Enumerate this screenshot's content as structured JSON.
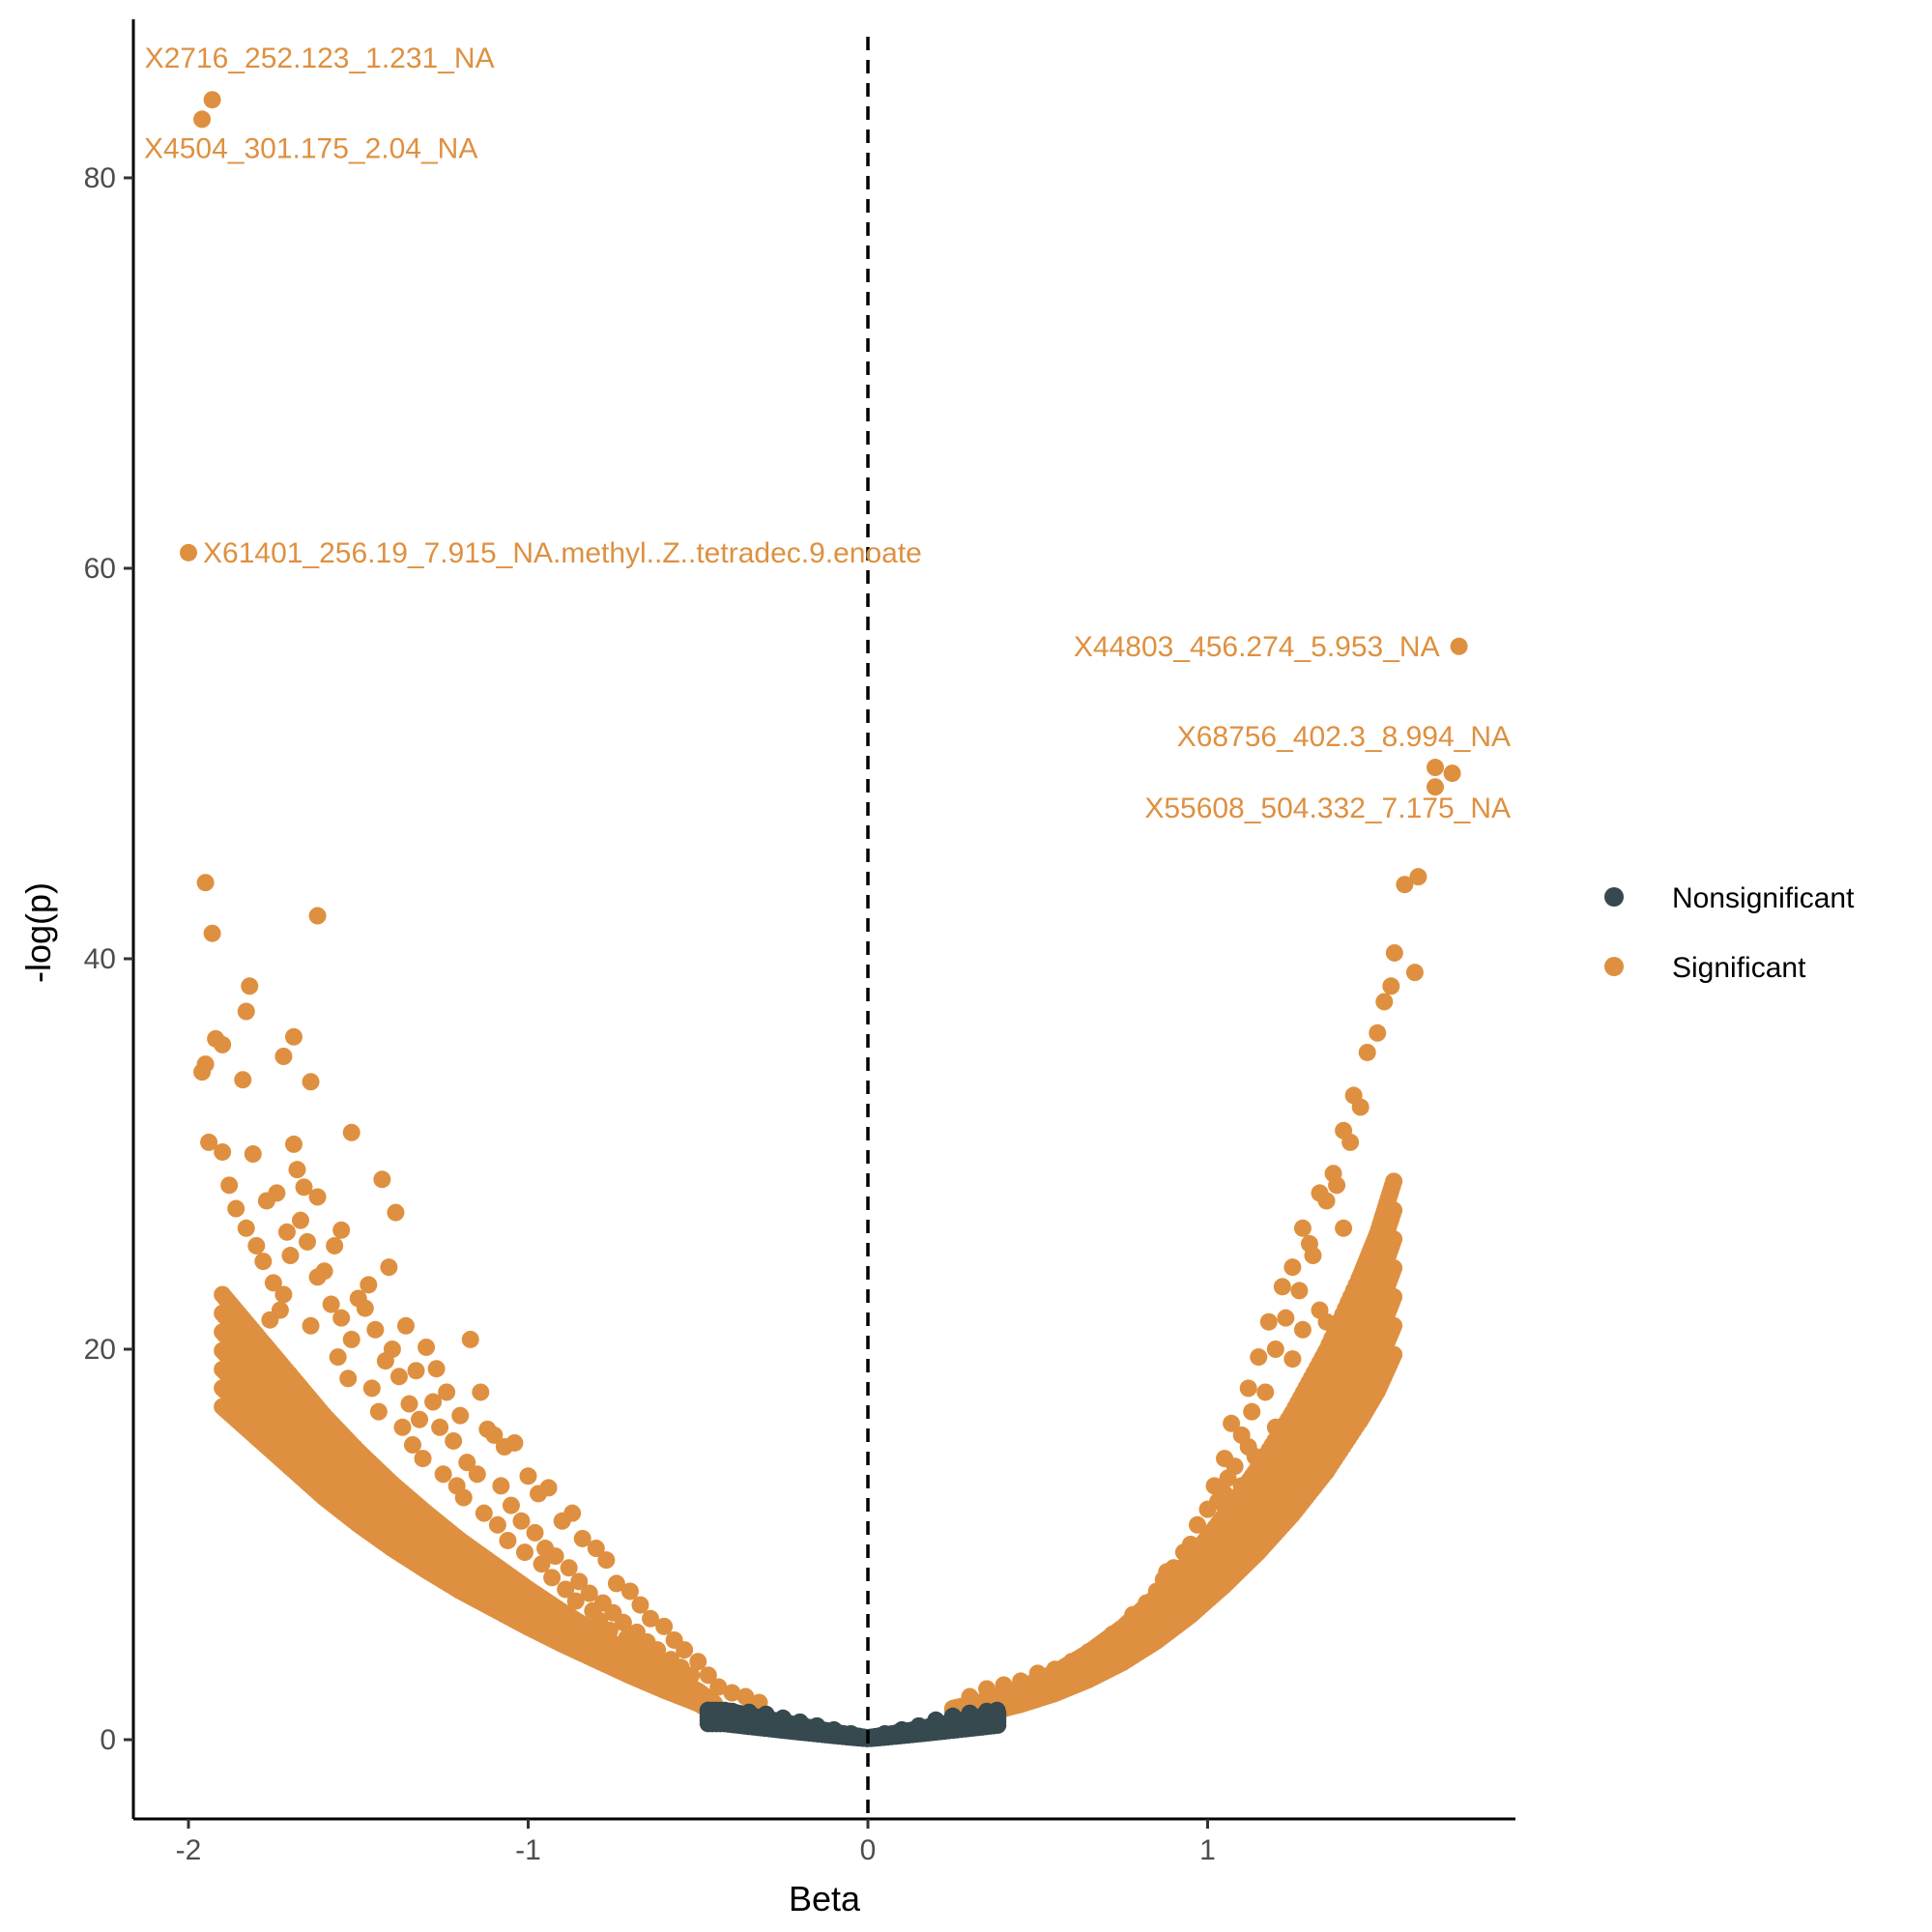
{
  "chart_data": {
    "type": "scatter",
    "title": "",
    "xlabel": "Beta",
    "ylabel": "-log(p)",
    "xlim": [
      -2.2,
      1.9
    ],
    "ylim": [
      -4,
      87
    ],
    "x_ticks": [
      -2,
      -1,
      0,
      1
    ],
    "x_tick_labels": [
      "-2",
      "-1",
      "0",
      "1"
    ],
    "y_ticks": [
      0,
      20,
      40,
      60,
      80
    ],
    "y_tick_labels": [
      "0",
      "20",
      "40",
      "60",
      "80"
    ],
    "grid": false,
    "vline": {
      "x": 0,
      "style": "dashed"
    },
    "legend": {
      "placement": "right",
      "entries": [
        {
          "label": "Nonsignificant",
          "color": "#36494f"
        },
        {
          "label": "Significant",
          "color": "#de9040"
        }
      ]
    },
    "series": [
      {
        "name": "Nonsignificant",
        "color": "#36494f",
        "description_of_cloud": "dense band for |Beta| <= ~0.45, -log(p) <= ~1.5",
        "points": [
          [
            -0.47,
            1.5
          ],
          [
            -0.4,
            1.45
          ],
          [
            -0.35,
            1.4
          ],
          [
            -0.3,
            1.3
          ],
          [
            -0.25,
            1.1
          ],
          [
            -0.2,
            0.9
          ],
          [
            -0.15,
            0.7
          ],
          [
            -0.1,
            0.5
          ],
          [
            -0.05,
            0.3
          ],
          [
            0,
            0.1
          ],
          [
            0.05,
            0.3
          ],
          [
            0.1,
            0.5
          ],
          [
            0.15,
            0.7
          ],
          [
            0.2,
            1.0
          ],
          [
            0.25,
            1.2
          ],
          [
            0.3,
            1.35
          ],
          [
            0.35,
            1.45
          ],
          [
            0.38,
            1.5
          ]
        ]
      },
      {
        "name": "Significant",
        "color": "#de9040",
        "points": [
          [
            -1.93,
            84.0
          ],
          [
            -1.96,
            83.0
          ],
          [
            -2.0,
            60.8
          ],
          [
            1.74,
            56.0
          ],
          [
            1.67,
            49.8
          ],
          [
            1.72,
            49.5
          ],
          [
            1.67,
            48.8
          ],
          [
            1.62,
            44.2
          ],
          [
            1.58,
            43.8
          ],
          [
            1.55,
            40.3
          ],
          [
            1.61,
            39.3
          ],
          [
            -1.95,
            43.9
          ],
          [
            -1.93,
            41.3
          ],
          [
            -1.62,
            42.2
          ],
          [
            -1.82,
            38.6
          ],
          [
            -1.83,
            37.3
          ],
          [
            -1.92,
            35.9
          ],
          [
            -1.9,
            35.6
          ],
          [
            -1.69,
            36.0
          ],
          [
            -1.95,
            34.6
          ],
          [
            -1.96,
            34.2
          ],
          [
            -1.72,
            35.0
          ],
          [
            -1.64,
            33.7
          ],
          [
            -1.84,
            33.8
          ],
          [
            -1.52,
            31.1
          ],
          [
            -1.94,
            30.6
          ],
          [
            -1.9,
            30.1
          ],
          [
            -1.81,
            30.0
          ],
          [
            -1.69,
            30.5
          ],
          [
            -1.43,
            28.7
          ],
          [
            -1.39,
            27.0
          ],
          [
            -1.41,
            24.2
          ],
          [
            -1.55,
            26.1
          ],
          [
            -1.62,
            27.8
          ]
        ],
        "curve_left": [
          [
            -1.9,
            27.5
          ],
          [
            -1.8,
            25.0
          ],
          [
            -1.7,
            22.5
          ],
          [
            -1.6,
            20.0
          ],
          [
            -1.5,
            17.8
          ],
          [
            -1.4,
            15.8
          ],
          [
            -1.3,
            14.0
          ],
          [
            -1.2,
            12.3
          ],
          [
            -1.1,
            10.8
          ],
          [
            -1.0,
            9.3
          ],
          [
            -0.9,
            7.9
          ],
          [
            -0.8,
            6.6
          ],
          [
            -0.7,
            5.3
          ],
          [
            -0.6,
            4.1
          ],
          [
            -0.5,
            3.0
          ],
          [
            -0.45,
            2.2
          ]
        ],
        "curve_right": [
          [
            0.25,
            2.0
          ],
          [
            0.35,
            2.5
          ],
          [
            0.45,
            3.3
          ],
          [
            0.55,
            4.3
          ],
          [
            0.65,
            5.6
          ],
          [
            0.75,
            7.2
          ],
          [
            0.85,
            9.2
          ],
          [
            0.95,
            11.6
          ],
          [
            1.05,
            14.4
          ],
          [
            1.15,
            17.5
          ],
          [
            1.25,
            21.0
          ],
          [
            1.35,
            25.0
          ],
          [
            1.45,
            29.8
          ],
          [
            1.5,
            32.5
          ],
          [
            1.55,
            36.0
          ]
        ],
        "extra_scatter_left": [
          [
            -1.88,
            28.4
          ],
          [
            -1.86,
            27.2
          ],
          [
            -1.83,
            26.2
          ],
          [
            -1.8,
            25.3
          ],
          [
            -1.78,
            24.5
          ],
          [
            -1.75,
            23.4
          ],
          [
            -1.72,
            22.8
          ],
          [
            -1.7,
            24.8
          ],
          [
            -1.67,
            26.6
          ],
          [
            -1.65,
            25.5
          ],
          [
            -1.62,
            23.7
          ],
          [
            -1.58,
            22.3
          ],
          [
            -1.55,
            21.6
          ],
          [
            -1.52,
            20.5
          ],
          [
            -1.48,
            22.1
          ],
          [
            -1.45,
            21.0
          ],
          [
            -1.42,
            19.4
          ],
          [
            -1.38,
            18.6
          ],
          [
            -1.35,
            17.2
          ],
          [
            -1.32,
            16.4
          ],
          [
            -1.3,
            20.1
          ],
          [
            -1.27,
            19.0
          ],
          [
            -1.24,
            17.8
          ],
          [
            -1.2,
            16.6
          ],
          [
            -1.17,
            20.5
          ],
          [
            -1.14,
            17.8
          ],
          [
            -1.1,
            15.6
          ],
          [
            -1.07,
            15.0
          ],
          [
            -1.04,
            15.2
          ],
          [
            -1.0,
            13.5
          ],
          [
            -0.97,
            12.6
          ],
          [
            -0.94,
            12.9
          ],
          [
            -0.9,
            11.2
          ],
          [
            -0.87,
            11.6
          ],
          [
            -0.84,
            10.3
          ],
          [
            -0.8,
            9.8
          ],
          [
            -0.77,
            9.2
          ],
          [
            -0.74,
            8.0
          ],
          [
            -0.7,
            7.6
          ],
          [
            -0.67,
            6.9
          ],
          [
            -0.64,
            6.2
          ],
          [
            -0.6,
            5.8
          ],
          [
            -0.57,
            5.1
          ],
          [
            -0.54,
            4.6
          ],
          [
            -0.5,
            4.0
          ],
          [
            -0.47,
            3.3
          ],
          [
            -0.44,
            2.7
          ],
          [
            -0.4,
            2.4
          ],
          [
            -0.36,
            2.2
          ],
          [
            -0.32,
            1.9
          ],
          [
            -1.66,
            28.3
          ],
          [
            -1.6,
            24.0
          ],
          [
            -1.57,
            25.3
          ],
          [
            -1.5,
            22.6
          ],
          [
            -1.47,
            23.3
          ],
          [
            -1.4,
            20.0
          ],
          [
            -1.36,
            21.2
          ],
          [
            -1.33,
            18.9
          ],
          [
            -1.28,
            17.3
          ],
          [
            -1.26,
            16.0
          ],
          [
            -1.22,
            15.3
          ],
          [
            -1.18,
            14.2
          ],
          [
            -1.15,
            13.6
          ],
          [
            -1.12,
            15.9
          ],
          [
            -1.08,
            13.0
          ],
          [
            -1.05,
            12.0
          ],
          [
            -1.02,
            11.2
          ],
          [
            -0.98,
            10.6
          ],
          [
            -0.95,
            9.8
          ],
          [
            -0.92,
            9.4
          ],
          [
            -0.88,
            8.8
          ],
          [
            -0.85,
            8.1
          ],
          [
            -0.82,
            7.5
          ],
          [
            -0.78,
            7.0
          ],
          [
            -0.75,
            6.5
          ],
          [
            -0.72,
            6.0
          ],
          [
            -0.68,
            5.5
          ],
          [
            -0.65,
            5.0
          ],
          [
            -0.62,
            4.6
          ],
          [
            -0.58,
            4.1
          ],
          [
            -0.55,
            3.7
          ],
          [
            -0.52,
            3.3
          ],
          [
            -1.74,
            28.0
          ],
          [
            -1.77,
            27.6
          ],
          [
            -1.71,
            26.0
          ],
          [
            -1.68,
            29.2
          ],
          [
            -1.73,
            22.0
          ],
          [
            -1.76,
            21.5
          ],
          [
            -1.64,
            21.2
          ],
          [
            -1.56,
            19.6
          ],
          [
            -1.53,
            18.5
          ],
          [
            -1.46,
            18.0
          ],
          [
            -1.44,
            16.8
          ],
          [
            -1.37,
            16.0
          ],
          [
            -1.34,
            15.1
          ],
          [
            -1.31,
            14.4
          ],
          [
            -1.25,
            13.6
          ],
          [
            -1.21,
            13.0
          ],
          [
            -1.19,
            12.4
          ],
          [
            -1.13,
            11.6
          ],
          [
            -1.09,
            11.0
          ],
          [
            -1.06,
            10.2
          ],
          [
            -1.01,
            9.6
          ],
          [
            -0.96,
            9.0
          ],
          [
            -0.93,
            8.3
          ],
          [
            -0.89,
            7.7
          ],
          [
            -0.86,
            7.1
          ],
          [
            -0.81,
            6.6
          ],
          [
            -0.79,
            6.1
          ],
          [
            -0.76,
            5.6
          ],
          [
            -0.71,
            5.2
          ],
          [
            -0.69,
            4.8
          ],
          [
            -0.66,
            4.3
          ],
          [
            -0.61,
            3.9
          ]
        ],
        "extra_scatter_right": [
          [
            0.3,
            2.2
          ],
          [
            0.35,
            2.6
          ],
          [
            0.4,
            2.8
          ],
          [
            0.45,
            3.0
          ],
          [
            0.5,
            3.4
          ],
          [
            0.55,
            3.6
          ],
          [
            0.6,
            4.0
          ],
          [
            0.65,
            4.5
          ],
          [
            0.7,
            5.0
          ],
          [
            0.75,
            5.6
          ],
          [
            0.78,
            6.4
          ],
          [
            0.8,
            6.2
          ],
          [
            0.82,
            7.0
          ],
          [
            0.85,
            7.6
          ],
          [
            0.87,
            8.2
          ],
          [
            0.88,
            6.8
          ],
          [
            0.9,
            8.8
          ],
          [
            0.92,
            7.4
          ],
          [
            0.93,
            9.6
          ],
          [
            0.95,
            10.0
          ],
          [
            0.97,
            11.0
          ],
          [
            0.98,
            9.0
          ],
          [
            1.0,
            11.8
          ],
          [
            1.02,
            13.0
          ],
          [
            1.03,
            12.2
          ],
          [
            1.05,
            14.4
          ],
          [
            1.07,
            16.2
          ],
          [
            1.08,
            14.0
          ],
          [
            1.1,
            15.6
          ],
          [
            1.12,
            18.0
          ],
          [
            1.13,
            16.8
          ],
          [
            1.15,
            19.6
          ],
          [
            1.17,
            17.8
          ],
          [
            1.18,
            21.4
          ],
          [
            1.2,
            20.0
          ],
          [
            1.22,
            23.2
          ],
          [
            1.23,
            21.6
          ],
          [
            1.25,
            24.2
          ],
          [
            1.27,
            23.0
          ],
          [
            1.28,
            26.2
          ],
          [
            1.3,
            25.4
          ],
          [
            1.31,
            24.8
          ],
          [
            1.33,
            28.0
          ],
          [
            1.35,
            27.6
          ],
          [
            1.37,
            29.0
          ],
          [
            1.38,
            28.4
          ],
          [
            1.4,
            31.2
          ],
          [
            1.42,
            30.6
          ],
          [
            1.43,
            33.0
          ],
          [
            1.45,
            32.4
          ],
          [
            1.47,
            35.2
          ],
          [
            1.5,
            36.2
          ],
          [
            1.52,
            37.8
          ],
          [
            1.54,
            38.6
          ],
          [
            0.92,
            8.0
          ],
          [
            0.88,
            8.6
          ],
          [
            0.84,
            7.0
          ],
          [
            1.0,
            10.0
          ],
          [
            1.05,
            12.6
          ],
          [
            1.1,
            13.0
          ],
          [
            1.12,
            15.0
          ],
          [
            1.14,
            14.5
          ],
          [
            1.2,
            16.0
          ],
          [
            1.25,
            19.5
          ],
          [
            1.3,
            18.0
          ],
          [
            1.35,
            21.4
          ],
          [
            1.38,
            20.4
          ],
          [
            1.4,
            26.2
          ],
          [
            1.33,
            22.0
          ],
          [
            1.28,
            21.0
          ],
          [
            1.06,
            13.4
          ],
          [
            0.97,
            9.4
          ],
          [
            0.83,
            6.6
          ],
          [
            0.77,
            5.8
          ],
          [
            0.72,
            5.4
          ]
        ]
      }
    ],
    "annotations": [
      {
        "text": "X2716_252.123_1.231_NA",
        "x": -1.93,
        "y": 84.0
      },
      {
        "text": "X4504_301.175_2.04_NA",
        "x": -1.96,
        "y": 83.0
      },
      {
        "text": "X61401_256.19_7.915_NA.methyl..Z..tetradec.9.enoate",
        "x": -2.0,
        "y": 60.8
      },
      {
        "text": "X44803_456.274_5.953_NA",
        "x": 1.74,
        "y": 56.0
      },
      {
        "text": "X68756_402.3_8.994_NA",
        "x": 1.67,
        "y": 49.8
      },
      {
        "text": "X55608_504.332_7.175_NA",
        "x": 1.67,
        "y": 48.8
      }
    ]
  }
}
